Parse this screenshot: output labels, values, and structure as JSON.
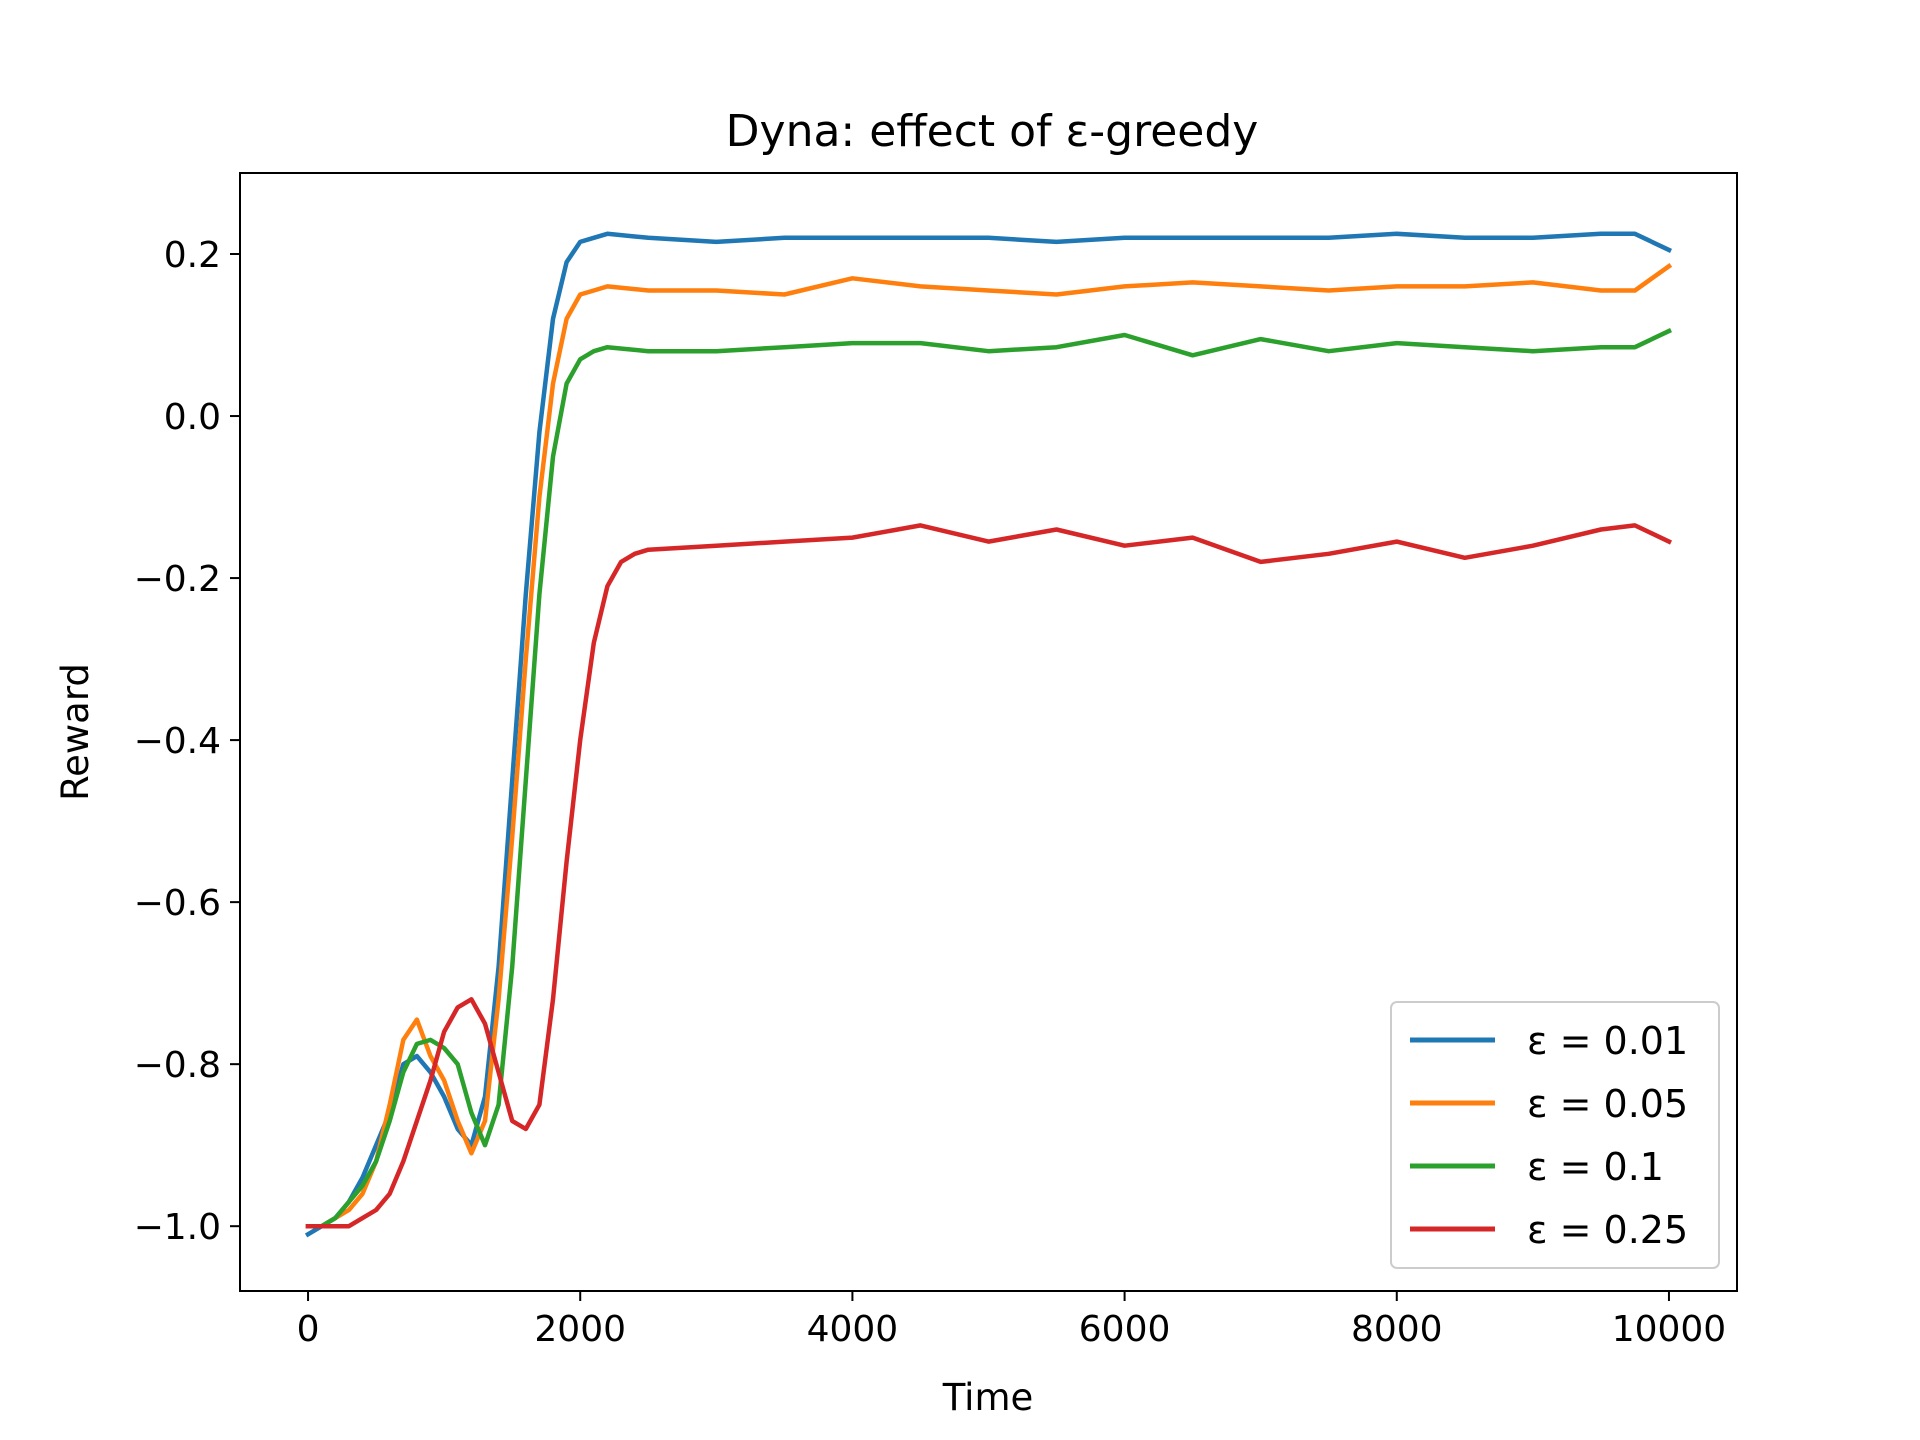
{
  "chart_data": {
    "type": "line",
    "title": "Dyna: effect of ε-greedy",
    "xlabel": "Time",
    "ylabel": "Reward",
    "xlim": [
      -500,
      10500
    ],
    "ylim": [
      -1.08,
      0.3
    ],
    "xticks": [
      0,
      2000,
      4000,
      6000,
      8000,
      10000
    ],
    "xtick_labels": [
      "0",
      "2000",
      "4000",
      "6000",
      "8000",
      "10000"
    ],
    "yticks": [
      -1.0,
      -0.8,
      -0.6,
      -0.4,
      -0.2,
      0.0,
      0.2
    ],
    "ytick_labels": [
      "−1.0",
      "−0.8",
      "−0.6",
      "−0.4",
      "−0.2",
      "0.0",
      "0.2"
    ],
    "grid": false,
    "legend_position": "lower-right",
    "series": [
      {
        "name": "ε = 0.01",
        "color": "#1f77b4",
        "x": [
          0,
          100,
          200,
          300,
          400,
          500,
          600,
          700,
          800,
          900,
          1000,
          1100,
          1200,
          1300,
          1400,
          1500,
          1600,
          1700,
          1800,
          1900,
          2000,
          2100,
          2200,
          2500,
          3000,
          3500,
          4000,
          4500,
          5000,
          5500,
          6000,
          6500,
          7000,
          7500,
          8000,
          8500,
          9000,
          9500,
          9750,
          10000
        ],
        "y": [
          -1.01,
          -1.0,
          -0.99,
          -0.97,
          -0.94,
          -0.9,
          -0.86,
          -0.8,
          -0.79,
          -0.81,
          -0.84,
          -0.88,
          -0.9,
          -0.84,
          -0.68,
          -0.45,
          -0.22,
          -0.02,
          0.12,
          0.19,
          0.215,
          0.22,
          0.225,
          0.22,
          0.215,
          0.22,
          0.22,
          0.22,
          0.22,
          0.215,
          0.22,
          0.22,
          0.22,
          0.22,
          0.225,
          0.22,
          0.22,
          0.225,
          0.225,
          0.205
        ]
      },
      {
        "name": "ε = 0.05",
        "color": "#ff7f0e",
        "x": [
          0,
          100,
          200,
          300,
          400,
          500,
          600,
          700,
          800,
          900,
          1000,
          1100,
          1200,
          1300,
          1400,
          1500,
          1600,
          1700,
          1800,
          1900,
          2000,
          2100,
          2200,
          2500,
          3000,
          3500,
          4000,
          4500,
          5000,
          5500,
          6000,
          6500,
          7000,
          7500,
          8000,
          8500,
          9000,
          9500,
          9750,
          10000
        ],
        "y": [
          -1.0,
          -1.0,
          -0.99,
          -0.98,
          -0.96,
          -0.92,
          -0.85,
          -0.77,
          -0.745,
          -0.79,
          -0.82,
          -0.87,
          -0.91,
          -0.87,
          -0.72,
          -0.52,
          -0.3,
          -0.1,
          0.04,
          0.12,
          0.15,
          0.155,
          0.16,
          0.155,
          0.155,
          0.15,
          0.17,
          0.16,
          0.155,
          0.15,
          0.16,
          0.165,
          0.16,
          0.155,
          0.16,
          0.16,
          0.165,
          0.155,
          0.155,
          0.185
        ]
      },
      {
        "name": "ε = 0.1",
        "color": "#2ca02c",
        "x": [
          0,
          100,
          200,
          300,
          400,
          500,
          600,
          700,
          800,
          900,
          1000,
          1100,
          1200,
          1300,
          1400,
          1500,
          1600,
          1700,
          1800,
          1900,
          2000,
          2100,
          2200,
          2500,
          3000,
          3500,
          4000,
          4500,
          5000,
          5500,
          6000,
          6500,
          7000,
          7500,
          8000,
          8500,
          9000,
          9500,
          9750,
          10000
        ],
        "y": [
          -1.0,
          -1.0,
          -0.99,
          -0.97,
          -0.95,
          -0.92,
          -0.87,
          -0.81,
          -0.775,
          -0.77,
          -0.78,
          -0.8,
          -0.86,
          -0.9,
          -0.85,
          -0.68,
          -0.45,
          -0.22,
          -0.05,
          0.04,
          0.07,
          0.08,
          0.085,
          0.08,
          0.08,
          0.085,
          0.09,
          0.09,
          0.08,
          0.085,
          0.1,
          0.075,
          0.095,
          0.08,
          0.09,
          0.085,
          0.08,
          0.085,
          0.085,
          0.105
        ]
      },
      {
        "name": "ε = 0.25",
        "color": "#d62728",
        "x": [
          0,
          100,
          200,
          300,
          400,
          500,
          600,
          700,
          800,
          900,
          1000,
          1100,
          1200,
          1300,
          1400,
          1500,
          1600,
          1700,
          1800,
          1900,
          2000,
          2100,
          2200,
          2300,
          2400,
          2500,
          3000,
          3500,
          4000,
          4500,
          5000,
          5500,
          6000,
          6500,
          7000,
          7500,
          8000,
          8500,
          9000,
          9500,
          9750,
          10000
        ],
        "y": [
          -1.0,
          -1.0,
          -1.0,
          -1.0,
          -0.99,
          -0.98,
          -0.96,
          -0.92,
          -0.87,
          -0.82,
          -0.76,
          -0.73,
          -0.72,
          -0.75,
          -0.81,
          -0.87,
          -0.88,
          -0.85,
          -0.72,
          -0.55,
          -0.4,
          -0.28,
          -0.21,
          -0.18,
          -0.17,
          -0.165,
          -0.16,
          -0.155,
          -0.15,
          -0.135,
          -0.155,
          -0.14,
          -0.16,
          -0.15,
          -0.18,
          -0.17,
          -0.155,
          -0.175,
          -0.16,
          -0.14,
          -0.135,
          -0.155
        ]
      }
    ]
  }
}
